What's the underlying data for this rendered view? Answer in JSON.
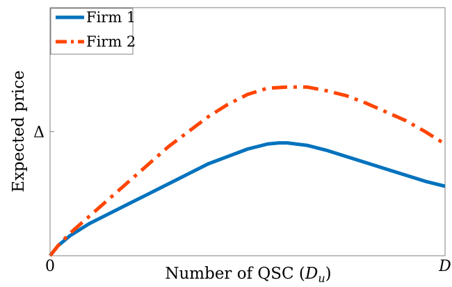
{
  "chart_data": {
    "type": "line",
    "xlabel_prefix": "Number of QSC (",
    "xlabel_symbol": "D",
    "xlabel_subscript": "u",
    "xlabel_suffix": ")",
    "ylabel": "Expected price",
    "xlim": [
      0,
      1
    ],
    "ylim": [
      0,
      1.0
    ],
    "x_ticks": [
      {
        "value": 0,
        "label": "0"
      },
      {
        "value": 1,
        "label": "D"
      }
    ],
    "y_ticks": [
      {
        "value": 0.5,
        "label": "Δ"
      }
    ],
    "grid": false,
    "legend_position": "top-left",
    "series": [
      {
        "name": "Firm 1",
        "color": "#0072BD",
        "style": "solid",
        "x": [
          0,
          0.02,
          0.05,
          0.1,
          0.15,
          0.2,
          0.25,
          0.3,
          0.35,
          0.4,
          0.45,
          0.5,
          0.55,
          0.58,
          0.6,
          0.65,
          0.7,
          0.75,
          0.8,
          0.85,
          0.9,
          0.95,
          1.0
        ],
        "values": [
          0,
          0.04,
          0.08,
          0.13,
          0.17,
          0.21,
          0.25,
          0.29,
          0.33,
          0.37,
          0.4,
          0.43,
          0.45,
          0.455,
          0.455,
          0.445,
          0.425,
          0.4,
          0.375,
          0.35,
          0.325,
          0.3,
          0.28
        ]
      },
      {
        "name": "Firm 2",
        "color": "#FF4500",
        "style": "dashdot",
        "x": [
          0,
          0.02,
          0.05,
          0.1,
          0.15,
          0.2,
          0.25,
          0.3,
          0.35,
          0.4,
          0.45,
          0.5,
          0.55,
          0.6,
          0.65,
          0.7,
          0.75,
          0.8,
          0.85,
          0.9,
          0.95,
          1.0
        ],
        "values": [
          0,
          0.04,
          0.09,
          0.16,
          0.23,
          0.3,
          0.37,
          0.44,
          0.5,
          0.56,
          0.61,
          0.65,
          0.675,
          0.68,
          0.68,
          0.665,
          0.645,
          0.615,
          0.58,
          0.545,
          0.5,
          0.45
        ]
      }
    ]
  }
}
